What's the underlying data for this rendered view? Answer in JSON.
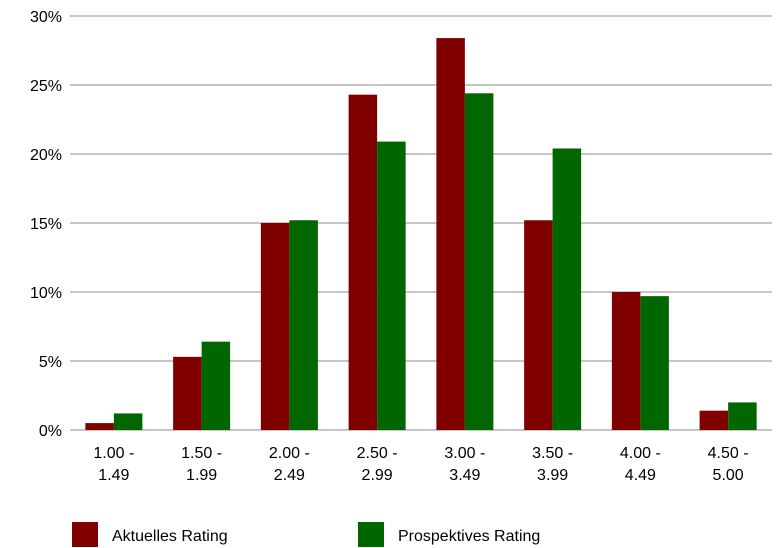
{
  "chart_data": {
    "type": "bar",
    "title": "",
    "xlabel": "",
    "ylabel": "",
    "ylim": [
      0,
      30
    ],
    "yticks": [
      {
        "value": 0,
        "label": "0%"
      },
      {
        "value": 5,
        "label": "5%"
      },
      {
        "value": 10,
        "label": "10%"
      },
      {
        "value": 15,
        "label": "15%"
      },
      {
        "value": 20,
        "label": "20%"
      },
      {
        "value": 25,
        "label": "25%"
      },
      {
        "value": 30,
        "label": "30%"
      }
    ],
    "categories": [
      [
        "1.00 -",
        "1.49"
      ],
      [
        "1.50 -",
        "1.99"
      ],
      [
        "2.00 -",
        "2.49"
      ],
      [
        "2.50 -",
        "2.99"
      ],
      [
        "3.00 -",
        "3.49"
      ],
      [
        "3.50 -",
        "3.99"
      ],
      [
        "4.00 -",
        "4.49"
      ],
      [
        "4.50 -",
        "5.00"
      ]
    ],
    "series": [
      {
        "name": "Aktuelles Rating",
        "color": "#800000",
        "values": [
          0.5,
          5.3,
          15.0,
          24.3,
          28.4,
          15.2,
          10.0,
          1.4
        ]
      },
      {
        "name": "Prospektives Rating",
        "color": "#006600",
        "values": [
          1.2,
          6.4,
          15.2,
          20.9,
          24.4,
          20.4,
          9.7,
          2.0
        ]
      }
    ],
    "grid": true,
    "gridColor": "#b3b3b3",
    "legend": "bottom"
  }
}
